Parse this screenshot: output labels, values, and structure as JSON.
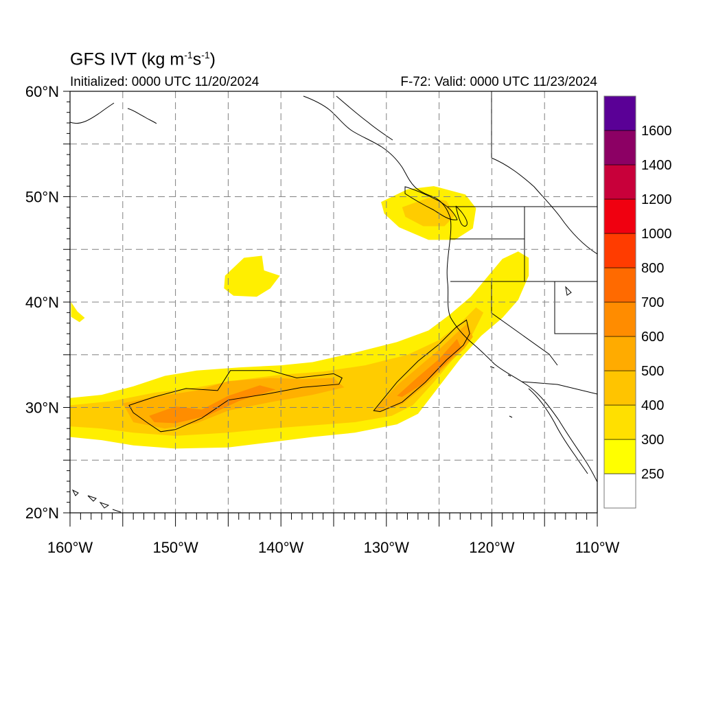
{
  "header": {
    "title_prefix": "GFS IVT (kg m",
    "exp1": "-1",
    "title_mid": "s",
    "exp2": "-1",
    "title_suffix": ")",
    "initialized": "Initialized: 0000 UTC 11/20/2024",
    "valid": "F-72: Valid: 0000 UTC 11/23/2024"
  },
  "map": {
    "lon_range": [
      -160,
      -110
    ],
    "lat_range": [
      20,
      60
    ],
    "lat_ticks": [
      {
        "value": 60,
        "label": "60°N"
      },
      {
        "value": 50,
        "label": "50°N"
      },
      {
        "value": 40,
        "label": "40°N"
      },
      {
        "value": 30,
        "label": "30°N"
      },
      {
        "value": 20,
        "label": "20°N"
      }
    ],
    "lon_ticks": [
      {
        "value": -160,
        "label": "160°W"
      },
      {
        "value": -150,
        "label": "150°W"
      },
      {
        "value": -140,
        "label": "140°W"
      },
      {
        "value": -130,
        "label": "130°W"
      },
      {
        "value": -120,
        "label": "120°W"
      },
      {
        "value": -110,
        "label": "110°W"
      }
    ],
    "grid_spacing_deg": 5,
    "grid": true
  },
  "colorbar": {
    "levels": [
      250,
      300,
      400,
      500,
      600,
      700,
      800,
      1000,
      1200,
      1400,
      1600
    ],
    "labels": [
      "250",
      "300",
      "400",
      "500",
      "600",
      "700",
      "800",
      "1000",
      "1200",
      "1400",
      "1600"
    ],
    "colors": [
      "#ffffff",
      "#ffff00",
      "#ffe000",
      "#ffc400",
      "#ffab00",
      "#ff8c00",
      "#ff6a00",
      "#ff3c00",
      "#f00010",
      "#c8003a",
      "#8c0064",
      "#5a0096"
    ]
  },
  "fields": {
    "colors": {
      "l300": "#ffef00",
      "l400": "#ffcc00",
      "l500": "#ffb000",
      "l600": "#ff8d00"
    },
    "bands": [
      {
        "level": "l300",
        "coords": [
          [
            -160,
            30.9
          ],
          [
            -157,
            31.2
          ],
          [
            -154,
            32.0
          ],
          [
            -151,
            33.0
          ],
          [
            -148,
            33.5
          ],
          [
            -144,
            33.8
          ],
          [
            -140,
            34.0
          ],
          [
            -137,
            34.3
          ],
          [
            -133,
            35.2
          ],
          [
            -129,
            36.2
          ],
          [
            -126,
            37.3
          ],
          [
            -124,
            38.8
          ],
          [
            -122,
            40.5
          ],
          [
            -120.5,
            42.3
          ],
          [
            -119,
            44.1
          ],
          [
            -117.5,
            44.8
          ],
          [
            -116.5,
            44.2
          ],
          [
            -116.5,
            42.5
          ],
          [
            -117.5,
            40.2
          ],
          [
            -119,
            38.5
          ],
          [
            -121,
            36.8
          ],
          [
            -123,
            34.6
          ],
          [
            -125,
            32.0
          ],
          [
            -127,
            29.4
          ],
          [
            -129,
            28.4
          ],
          [
            -133,
            27.6
          ],
          [
            -137,
            27.2
          ],
          [
            -141,
            26.7
          ],
          [
            -145,
            26.2
          ],
          [
            -150,
            26.1
          ],
          [
            -154,
            26.4
          ],
          [
            -157,
            26.9
          ],
          [
            -160,
            27.2
          ]
        ]
      },
      {
        "level": "l400",
        "coords": [
          [
            -160,
            30.2
          ],
          [
            -156,
            30.6
          ],
          [
            -152,
            31.4
          ],
          [
            -148,
            31.9
          ],
          [
            -144,
            32.6
          ],
          [
            -140,
            33.1
          ],
          [
            -136,
            33.4
          ],
          [
            -132,
            34.0
          ],
          [
            -128,
            35.0
          ],
          [
            -125,
            36.4
          ],
          [
            -123,
            38.0
          ],
          [
            -121.5,
            39.5
          ],
          [
            -120.8,
            39.0
          ],
          [
            -121.8,
            37.0
          ],
          [
            -123.5,
            34.8
          ],
          [
            -125.5,
            32.4
          ],
          [
            -127.5,
            30.2
          ],
          [
            -129.5,
            29.2
          ],
          [
            -133,
            28.6
          ],
          [
            -137,
            28.3
          ],
          [
            -141,
            28.0
          ],
          [
            -145,
            27.6
          ],
          [
            -150,
            27.3
          ],
          [
            -154,
            27.6
          ],
          [
            -157,
            28.0
          ],
          [
            -160,
            28.2
          ]
        ]
      },
      {
        "level": "l500",
        "coords": [
          [
            -155,
            30.4
          ],
          [
            -152,
            31.0
          ],
          [
            -148,
            31.6
          ],
          [
            -145,
            32.5
          ],
          [
            -141,
            32.8
          ],
          [
            -138,
            32.7
          ],
          [
            -135,
            32.8
          ],
          [
            -134,
            31.9
          ],
          [
            -137,
            31.2
          ],
          [
            -141,
            30.5
          ],
          [
            -145,
            29.7
          ],
          [
            -148,
            28.5
          ],
          [
            -151,
            28.0
          ],
          [
            -154,
            28.6
          ]
        ]
      },
      {
        "level": "l500",
        "coords": [
          [
            -131.2,
            29.7
          ],
          [
            -129,
            32.1
          ],
          [
            -127,
            33.8
          ],
          [
            -125,
            35.5
          ],
          [
            -123.2,
            37.2
          ],
          [
            -122.3,
            38.0
          ],
          [
            -121.8,
            36.7
          ],
          [
            -122.6,
            35.6
          ],
          [
            -124.2,
            34.1
          ],
          [
            -126.2,
            32.2
          ],
          [
            -128.5,
            30.3
          ],
          [
            -130.5,
            29.6
          ]
        ]
      },
      {
        "level": "l600",
        "coords": [
          [
            -152.5,
            29.2
          ],
          [
            -150,
            30.1
          ],
          [
            -147.5,
            29.8
          ],
          [
            -145,
            31.1
          ],
          [
            -142,
            32.1
          ],
          [
            -140.5,
            31.7
          ],
          [
            -144,
            30.6
          ],
          [
            -147,
            29.2
          ],
          [
            -150,
            28.5
          ],
          [
            -152,
            28.6
          ]
        ]
      },
      {
        "level": "l600",
        "coords": [
          [
            -129,
            31.1
          ],
          [
            -127,
            32.9
          ],
          [
            -125,
            34.6
          ],
          [
            -123.3,
            36.5
          ],
          [
            -122.9,
            35.6
          ],
          [
            -124.4,
            34.1
          ],
          [
            -126.3,
            32.4
          ],
          [
            -128.5,
            31.0
          ]
        ]
      },
      {
        "level": "l300",
        "coords": [
          [
            -130.5,
            49.5
          ],
          [
            -128,
            50.7
          ],
          [
            -125.5,
            51.0
          ],
          [
            -122.5,
            50.2
          ],
          [
            -121.5,
            48.9
          ],
          [
            -121.8,
            47.0
          ],
          [
            -123.5,
            45.9
          ],
          [
            -126,
            45.9
          ],
          [
            -128.8,
            47.1
          ],
          [
            -130.2,
            48.4
          ]
        ]
      },
      {
        "level": "l400",
        "coords": [
          [
            -128.5,
            49.0
          ],
          [
            -126,
            49.9
          ],
          [
            -124.3,
            49.6
          ],
          [
            -123.5,
            48.2
          ],
          [
            -124.5,
            47.2
          ],
          [
            -126.5,
            47.2
          ],
          [
            -128.2,
            48.1
          ]
        ]
      },
      {
        "level": "l300",
        "coords": [
          [
            -145.3,
            42.5
          ],
          [
            -143.5,
            44.2
          ],
          [
            -141.8,
            44.4
          ],
          [
            -141.6,
            43.0
          ],
          [
            -140.1,
            42.5
          ],
          [
            -141.0,
            41.3
          ],
          [
            -142.3,
            40.5
          ],
          [
            -144.5,
            40.6
          ],
          [
            -145.4,
            41.3
          ]
        ]
      },
      {
        "level": "l300",
        "coords": [
          [
            -159.9,
            40.0
          ],
          [
            -159.3,
            39.1
          ],
          [
            -158.6,
            38.5
          ],
          [
            -159.1,
            38.1
          ],
          [
            -159.9,
            38.6
          ]
        ]
      }
    ],
    "outlines": [
      [
        [
          -154.4,
          30.2
        ],
        [
          -152,
          31.0
        ],
        [
          -149,
          31.8
        ],
        [
          -146,
          31.6
        ],
        [
          -144.8,
          33.5
        ],
        [
          -141,
          33.5
        ],
        [
          -138.5,
          32.8
        ],
        [
          -135,
          33.2
        ],
        [
          -134.2,
          32.8
        ],
        [
          -134.5,
          32.2
        ],
        [
          -138,
          31.9
        ],
        [
          -141.2,
          31.3
        ],
        [
          -145,
          30.7
        ],
        [
          -147.5,
          29.0
        ],
        [
          -150,
          27.9
        ],
        [
          -151.4,
          27.7
        ],
        [
          -152.6,
          28.5
        ],
        [
          -154,
          29.5
        ]
      ],
      [
        [
          -131.2,
          29.7
        ],
        [
          -129,
          32.4
        ],
        [
          -127,
          34.4
        ],
        [
          -125,
          36.0
        ],
        [
          -123.4,
          37.6
        ],
        [
          -122.4,
          38.3
        ],
        [
          -122.1,
          37.0
        ],
        [
          -122.7,
          35.9
        ],
        [
          -124.3,
          34.5
        ],
        [
          -126.3,
          32.4
        ],
        [
          -128.5,
          30.5
        ],
        [
          -130.6,
          29.6
        ]
      ]
    ]
  }
}
